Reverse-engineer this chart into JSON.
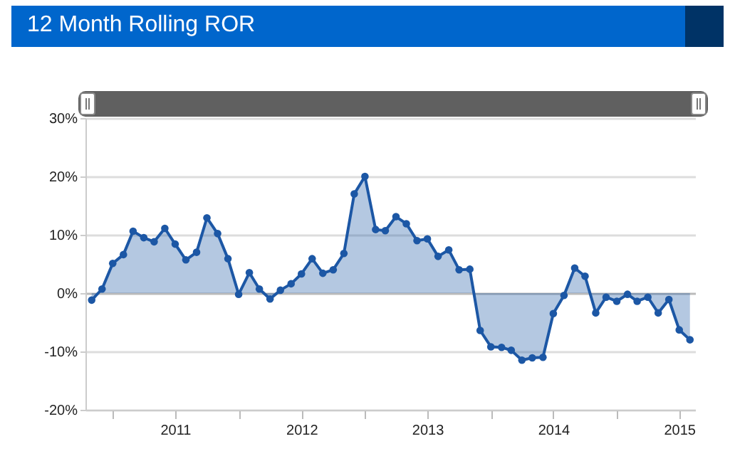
{
  "chart_data": {
    "type": "area",
    "title": "12 Month Rolling ROR",
    "x": [
      "2010-11",
      "2010-12",
      "2011-01",
      "2011-02",
      "2011-03",
      "2011-04",
      "2011-05",
      "2011-06",
      "2011-07",
      "2011-08",
      "2011-09",
      "2011-10",
      "2011-11",
      "2011-12",
      "2012-01",
      "2012-02",
      "2012-03",
      "2012-04",
      "2012-05",
      "2012-06",
      "2012-07",
      "2012-08",
      "2012-09",
      "2012-10",
      "2012-11",
      "2012-12",
      "2013-01",
      "2013-02",
      "2013-03",
      "2013-04",
      "2013-05",
      "2013-06",
      "2013-07",
      "2013-08",
      "2013-09",
      "2013-10",
      "2013-11",
      "2013-12",
      "2014-01",
      "2014-02",
      "2014-03",
      "2014-04",
      "2014-05",
      "2014-06",
      "2014-07",
      "2014-08",
      "2014-09",
      "2014-10",
      "2014-11",
      "2014-12",
      "2015-01",
      "2015-02",
      "2015-03",
      "2015-04",
      "2015-05",
      "2015-06",
      "2015-07",
      "2015-08"
    ],
    "series": [
      {
        "color": "#1c57a5",
        "values": [
          -1.2,
          0.7,
          5.1,
          6.6,
          10.6,
          9.5,
          8.8,
          11.1,
          8.4,
          5.7,
          7.0,
          12.9,
          10.2,
          5.9,
          -0.2,
          3.5,
          0.7,
          -1.0,
          0.5,
          1.6,
          3.3,
          5.9,
          3.4,
          4.0,
          6.8,
          17.0,
          20.0,
          10.9,
          10.7,
          13.1,
          11.9,
          9.0,
          9.3,
          6.3,
          7.4,
          4.0,
          4.1,
          -6.4,
          -9.2,
          -9.3,
          -9.8,
          -11.5,
          -11.1,
          -11.0,
          -3.5,
          -0.4,
          4.3,
          2.9,
          -3.4,
          -0.7,
          -1.4,
          -0.2,
          -1.4,
          -0.7,
          -3.4,
          -1.1,
          -6.3,
          -8.0
        ]
      }
    ],
    "xlim": [
      "2010-10-14",
      "2015-08-16"
    ],
    "xticks": [
      {
        "value": "2011-01",
        "label": null
      },
      {
        "value": "2011-07",
        "label": "2011"
      },
      {
        "value": "2012-01",
        "label": null
      },
      {
        "value": "2012-07",
        "label": "2012"
      },
      {
        "value": "2013-01",
        "label": null
      },
      {
        "value": "2013-07",
        "label": "2013"
      },
      {
        "value": "2014-01",
        "label": null
      },
      {
        "value": "2014-07",
        "label": "2014"
      },
      {
        "value": "2015-01",
        "label": null
      },
      {
        "value": "2015-07",
        "label": "2015"
      }
    ],
    "ylim": [
      -20,
      30
    ],
    "yticks": [
      {
        "value": -20,
        "label": "-20%"
      },
      {
        "value": -10,
        "label": "-10%"
      },
      {
        "value": 0,
        "label": "0%"
      },
      {
        "value": 10,
        "label": "10%"
      },
      {
        "value": 20,
        "label": "20%"
      },
      {
        "value": 30,
        "label": "30%"
      }
    ],
    "grid": "y",
    "marker": "circle",
    "line_style": "solid"
  }
}
